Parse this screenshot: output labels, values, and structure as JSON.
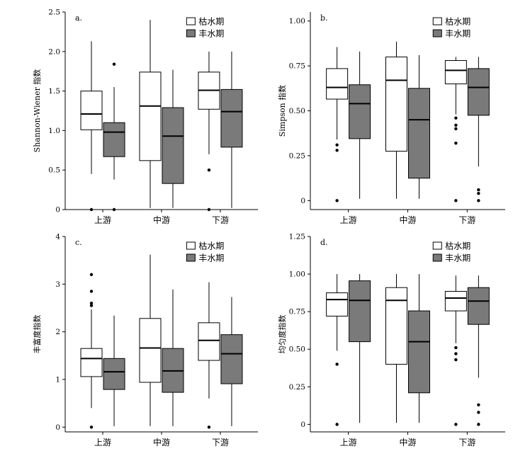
{
  "colors": {
    "dry": "#ffffff",
    "wet": "#7a7a7a",
    "stroke": "#000000"
  },
  "legend": {
    "dry_label": "枯水期",
    "wet_label": "丰水期"
  },
  "chart_data": [
    {
      "type": "box",
      "panel": "a.",
      "ylabel": "Shannon-Wiener 指数",
      "categories": [
        "上游",
        "中游",
        "下游"
      ],
      "ylim": [
        0,
        2.5
      ],
      "yticks": [
        "0",
        "0.5",
        "1.0",
        "1.5",
        "2.0",
        "2.5"
      ],
      "ytick_values": [
        0,
        0.5,
        1.0,
        1.5,
        2.0,
        2.5
      ],
      "series": [
        {
          "name": "枯水期",
          "boxes": [
            {
              "min": 0.45,
              "q1": 1.01,
              "median": 1.21,
              "q3": 1.5,
              "max": 2.13,
              "outliers": [
                0
              ]
            },
            {
              "min": 0.02,
              "q1": 0.62,
              "median": 1.31,
              "q3": 1.74,
              "max": 2.4,
              "outliers": []
            },
            {
              "min": 0.7,
              "q1": 1.27,
              "median": 1.51,
              "q3": 1.74,
              "max": 2.0,
              "outliers": [
                0.5,
                0
              ]
            }
          ]
        },
        {
          "name": "丰水期",
          "boxes": [
            {
              "min": 0.38,
              "q1": 0.67,
              "median": 0.98,
              "q3": 1.1,
              "max": 1.55,
              "outliers": [
                1.84,
                0
              ]
            },
            {
              "min": 0.02,
              "q1": 0.33,
              "median": 0.93,
              "q3": 1.29,
              "max": 1.77,
              "outliers": []
            },
            {
              "min": 0.02,
              "q1": 0.79,
              "median": 1.24,
              "q3": 1.52,
              "max": 2.0,
              "outliers": []
            }
          ]
        }
      ]
    },
    {
      "type": "box",
      "panel": "b.",
      "ylabel": "Simpson 指数",
      "categories": [
        "上游",
        "中游",
        "下游"
      ],
      "ylim": [
        -0.05,
        1.05
      ],
      "yticks": [
        "0",
        "0.25",
        "0.50",
        "0.75",
        "1.00"
      ],
      "ytick_values": [
        0,
        0.25,
        0.5,
        0.75,
        1.0
      ],
      "series": [
        {
          "name": "枯水期",
          "boxes": [
            {
              "min": 0.34,
              "q1": 0.565,
              "median": 0.63,
              "q3": 0.735,
              "max": 0.855,
              "outliers": [
                0.31,
                0.28,
                0
              ]
            },
            {
              "min": 0.01,
              "q1": 0.275,
              "median": 0.67,
              "q3": 0.8,
              "max": 0.885,
              "outliers": []
            },
            {
              "min": 0.48,
              "q1": 0.65,
              "median": 0.725,
              "q3": 0.78,
              "max": 0.8,
              "outliers": [
                0.46,
                0.42,
                0.4,
                0.32,
                0
              ]
            }
          ]
        },
        {
          "name": "丰水期",
          "boxes": [
            {
              "min": 0.01,
              "q1": 0.345,
              "median": 0.54,
              "q3": 0.645,
              "max": 0.83,
              "outliers": []
            },
            {
              "min": 0.01,
              "q1": 0.125,
              "median": 0.45,
              "q3": 0.625,
              "max": 0.81,
              "outliers": []
            },
            {
              "min": 0.19,
              "q1": 0.475,
              "median": 0.63,
              "q3": 0.735,
              "max": 0.8,
              "outliers": [
                0.06,
                0.04,
                0
              ]
            }
          ]
        }
      ]
    },
    {
      "type": "box",
      "panel": "c.",
      "ylabel": "丰富度指数",
      "categories": [
        "上游",
        "中游",
        "下游"
      ],
      "ylim": [
        -0.1,
        4.0
      ],
      "yticks": [
        "0",
        "1",
        "2",
        "3",
        "4"
      ],
      "ytick_values": [
        0,
        1,
        2,
        3,
        4
      ],
      "series": [
        {
          "name": "枯水期",
          "boxes": [
            {
              "min": 0.4,
              "q1": 1.06,
              "median": 1.44,
              "q3": 1.65,
              "max": 2.47,
              "outliers": [
                3.2,
                2.85,
                2.6,
                2.55,
                0
              ]
            },
            {
              "min": 0.02,
              "q1": 0.94,
              "median": 1.66,
              "q3": 2.28,
              "max": 3.62,
              "outliers": []
            },
            {
              "min": 0.6,
              "q1": 1.4,
              "median": 1.82,
              "q3": 2.19,
              "max": 3.04,
              "outliers": [
                0
              ]
            }
          ]
        },
        {
          "name": "丰水期",
          "boxes": [
            {
              "min": 0.02,
              "q1": 0.79,
              "median": 1.16,
              "q3": 1.44,
              "max": 2.34,
              "outliers": []
            },
            {
              "min": 0.02,
              "q1": 0.73,
              "median": 1.18,
              "q3": 1.65,
              "max": 2.89,
              "outliers": []
            },
            {
              "min": 0.02,
              "q1": 0.91,
              "median": 1.54,
              "q3": 1.94,
              "max": 2.73,
              "outliers": []
            }
          ]
        }
      ]
    },
    {
      "type": "box",
      "panel": "d.",
      "ylabel": "均匀度指数",
      "categories": [
        "上游",
        "中游",
        "下游"
      ],
      "ylim": [
        -0.05,
        1.25
      ],
      "yticks": [
        "0",
        "0.25",
        "0.50",
        "0.75",
        "1.00",
        "1.25"
      ],
      "ytick_values": [
        0,
        0.25,
        0.5,
        0.75,
        1.0,
        1.25
      ],
      "series": [
        {
          "name": "枯水期",
          "boxes": [
            {
              "min": 0.49,
              "q1": 0.72,
              "median": 0.83,
              "q3": 0.875,
              "max": 1.0,
              "outliers": [
                0.4,
                0
              ]
            },
            {
              "min": 0.01,
              "q1": 0.4,
              "median": 0.825,
              "q3": 0.91,
              "max": 1.0,
              "outliers": []
            },
            {
              "min": 0.54,
              "q1": 0.755,
              "median": 0.84,
              "q3": 0.885,
              "max": 0.99,
              "outliers": [
                0.51,
                0.47,
                0.43,
                0
              ]
            }
          ]
        },
        {
          "name": "丰水期",
          "boxes": [
            {
              "min": 0.01,
              "q1": 0.55,
              "median": 0.825,
              "q3": 0.955,
              "max": 1.0,
              "outliers": []
            },
            {
              "min": 0.01,
              "q1": 0.21,
              "median": 0.55,
              "q3": 0.755,
              "max": 1.0,
              "outliers": []
            },
            {
              "min": 0.31,
              "q1": 0.665,
              "median": 0.82,
              "q3": 0.91,
              "max": 0.99,
              "outliers": [
                0.13,
                0.08,
                0
              ]
            }
          ]
        }
      ]
    }
  ]
}
